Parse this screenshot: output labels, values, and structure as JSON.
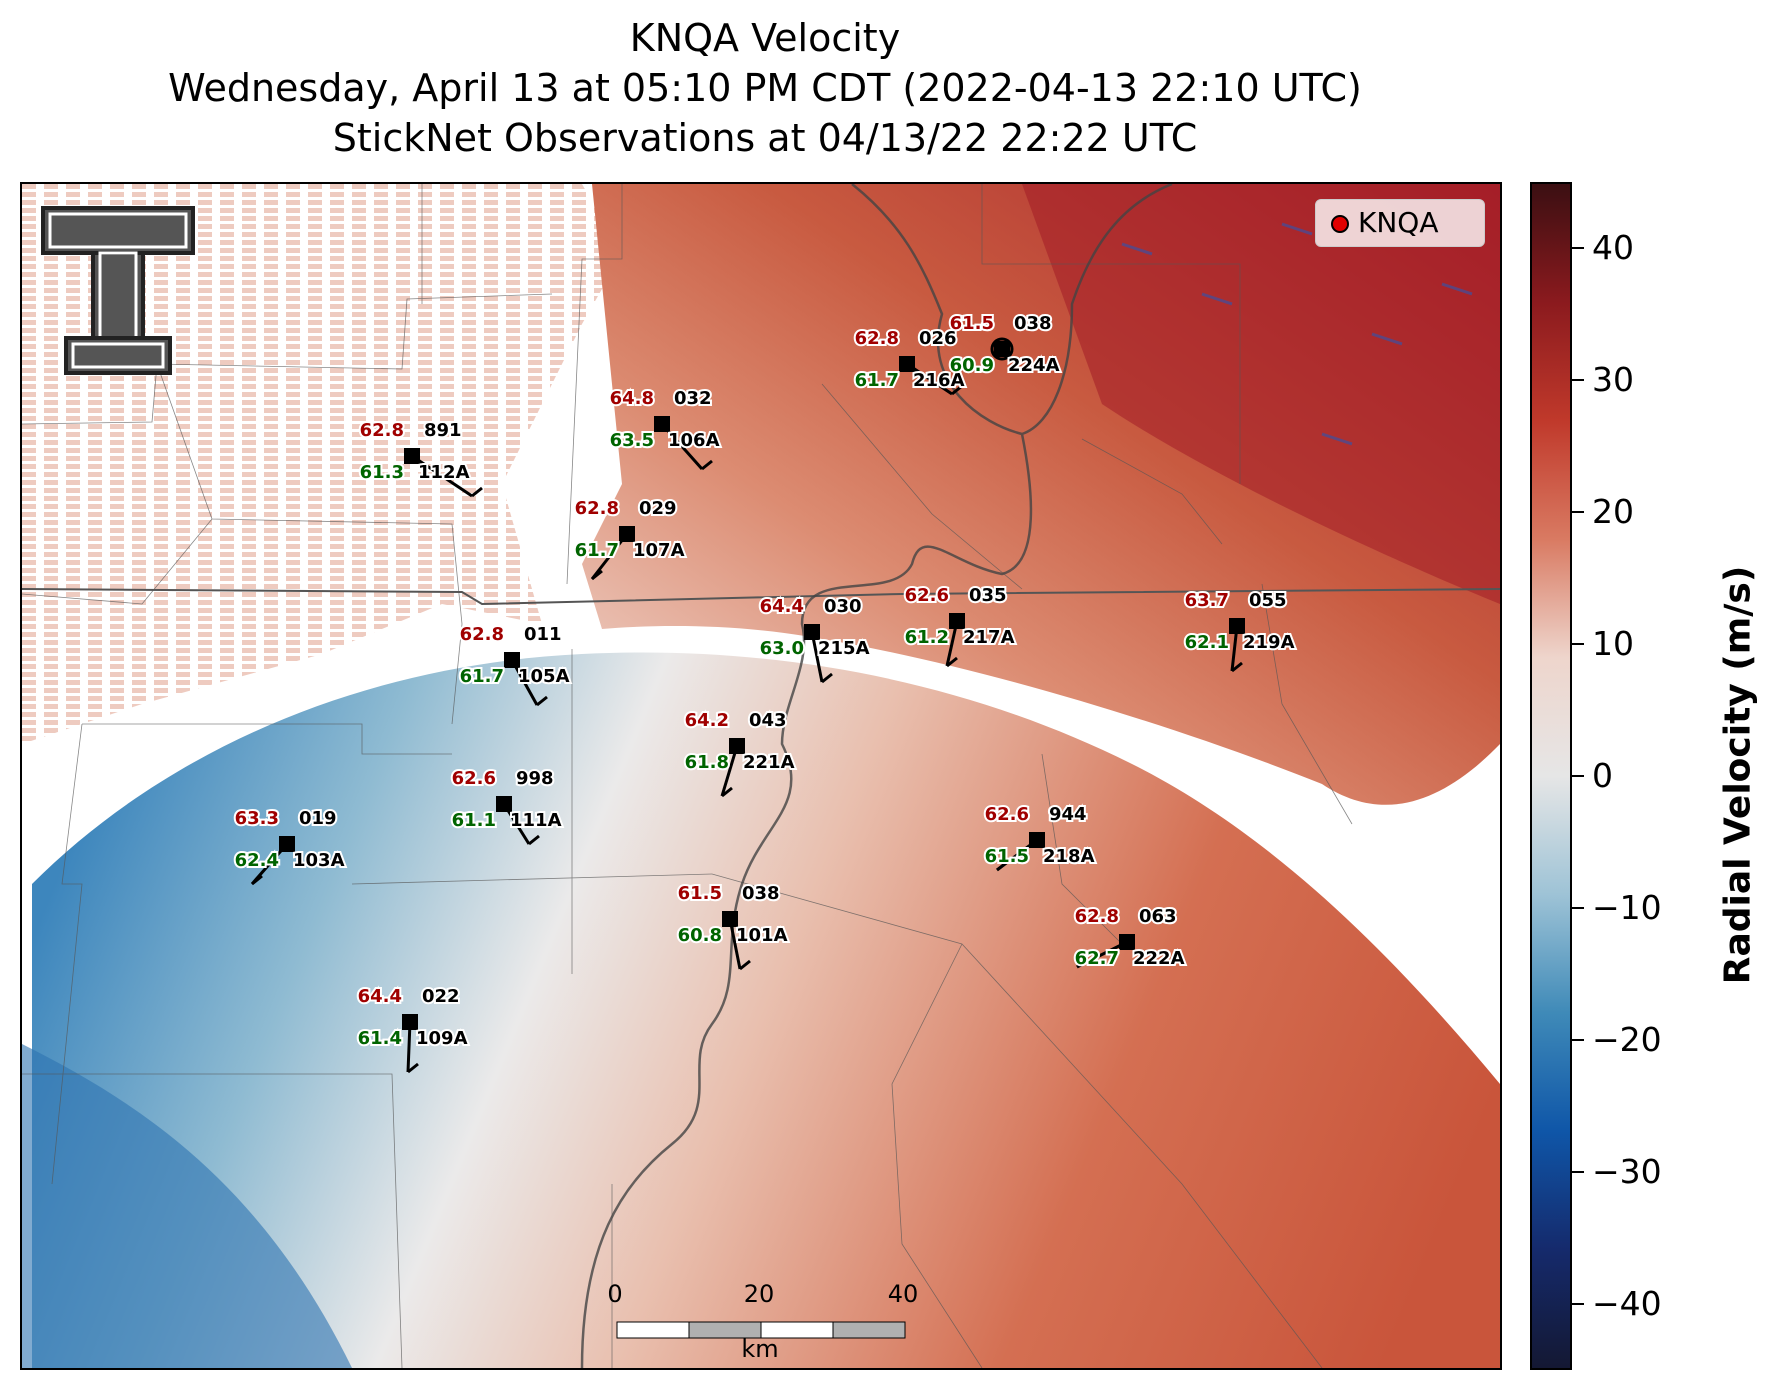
{
  "title_lines": [
    "KNQA Velocity",
    "Wednesday, April 13 at 05:10 PM CDT (2022-04-13 22:10 UTC)",
    "StickNet Observations at 04/13/22 22:22 UTC"
  ],
  "legend": {
    "marker_label": "KNQA",
    "marker_color": "#e00000"
  },
  "colorbar": {
    "label": "Radial Velocity (m/s)",
    "ticks": [
      "40",
      "30",
      "20",
      "10",
      "0",
      "−10",
      "−20",
      "−30",
      "−40"
    ],
    "range": [
      -45,
      45
    ],
    "colors": [
      "#3b0f12",
      "#8b1a1e",
      "#c0392b",
      "#d97a62",
      "#eed5cc",
      "#e6e6e6",
      "#9ec3d6",
      "#3f8ab8",
      "#0f56a8",
      "#152a6c",
      "#141833"
    ]
  },
  "scale_bar": {
    "ticks": [
      "0",
      "20",
      "40"
    ],
    "unit": "km"
  },
  "logo": {
    "text": "TT",
    "name": "texas-tech-logo"
  },
  "stations": [
    {
      "id": "891",
      "temp": "62.8",
      "dew": "61.3",
      "name": "112A"
    },
    {
      "id": "032",
      "temp": "64.8",
      "dew": "63.5",
      "name": "106A"
    },
    {
      "id": "026",
      "temp": "62.8",
      "dew": "61.7",
      "name": "216A"
    },
    {
      "id": "038",
      "temp": "61.5",
      "dew": "60.9",
      "name": "224A"
    },
    {
      "id": "029",
      "temp": "62.8",
      "dew": "61.7",
      "name": "107A"
    },
    {
      "id": "030",
      "temp": "64.4",
      "dew": "63.0",
      "name": "215A"
    },
    {
      "id": "035",
      "temp": "62.6",
      "dew": "61.2",
      "name": "217A"
    },
    {
      "id": "055",
      "temp": "63.7",
      "dew": "62.1",
      "name": "219A"
    },
    {
      "id": "011",
      "temp": "62.8",
      "dew": "61.7",
      "name": "105A"
    },
    {
      "id": "043",
      "temp": "64.2",
      "dew": "61.8",
      "name": "221A"
    },
    {
      "id": "998",
      "temp": "62.6",
      "dew": "61.1",
      "name": "111A"
    },
    {
      "id": "019",
      "temp": "63.3",
      "dew": "62.4",
      "name": "103A"
    },
    {
      "id": "944",
      "temp": "62.6",
      "dew": "61.5",
      "name": "218A"
    },
    {
      "id": "038",
      "temp": "61.5",
      "dew": "60.8",
      "name": "101A"
    },
    {
      "id": "063",
      "temp": "62.8",
      "dew": "62.7",
      "name": "222A"
    },
    {
      "id": "022",
      "temp": "64.4",
      "dew": "61.4",
      "name": "109A"
    }
  ]
}
